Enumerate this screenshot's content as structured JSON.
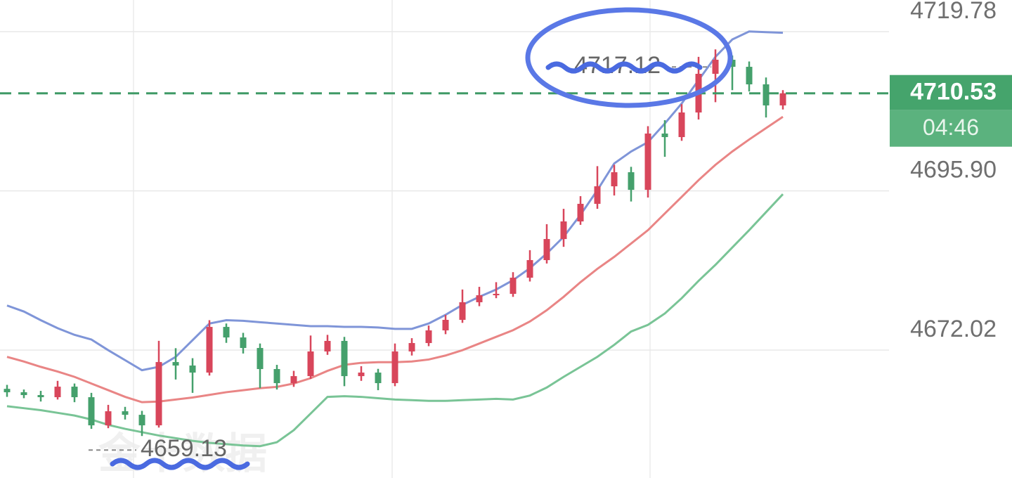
{
  "chart_data": {
    "type": "candlestick",
    "watermark": "金十数据",
    "countdown": "04:46",
    "up_color": "#d8465b",
    "down_color": "#45a06c",
    "ylim": [
      4652.83,
      4724.52
    ],
    "yticks": [
      4719.78,
      {
        "value": 4695.9,
        "label": "4695.90"
      },
      4672.02
    ],
    "grid": true,
    "open": [
      4666.2,
      4665.69,
      4665.27,
      4664.95,
      4666.53,
      4664.95,
      4660.73,
      4662.84,
      4662.31,
      4660.73,
      4670.22,
      4669.7,
      4668.64,
      4675.49,
      4673.91,
      4672.33,
      4669.17,
      4667.06,
      4668.11,
      4671.81,
      4673.39,
      4668.11,
      4668.64,
      4667.06,
      4671.81,
      4673.07,
      4674.97,
      4676.55,
      4679.19,
      4680.24,
      4680.45,
      4682.87,
      4685.51,
      4688.67,
      4691.31,
      4693.95,
      4696.58,
      4698.69,
      4696.05,
      4704.49,
      4703.96,
      4707.65,
      4713.45,
      4715.56,
      4714.5,
      4711.87,
      4708.71
    ],
    "high": [
      4666.8,
      4666.1,
      4665.9,
      4667.4,
      4667.0,
      4665.6,
      4663.8,
      4663.5,
      4662.9,
      4673.4,
      4672.3,
      4670.8,
      4676.5,
      4676.0,
      4674.6,
      4673.0,
      4669.8,
      4668.9,
      4674.2,
      4674.3,
      4674.0,
      4669.6,
      4669.2,
      4673.0,
      4673.8,
      4675.7,
      4677.3,
      4681.1,
      4681.5,
      4682.2,
      4683.7,
      4687.0,
      4690.9,
      4693.2,
      4695.1,
      4699.6,
      4699.8,
      4699.5,
      4705.6,
      4706.5,
      4708.9,
      4716.0,
      4717.12,
      4716.2,
      4715.3,
      4712.9,
      4711.0
    ],
    "low": [
      4665.0,
      4664.8,
      4664.3,
      4664.6,
      4664.2,
      4660.2,
      4660.3,
      4661.6,
      4659.13,
      4660.4,
      4667.6,
      4665.6,
      4668.2,
      4673.1,
      4671.5,
      4666.3,
      4666.1,
      4666.5,
      4667.7,
      4671.3,
      4666.6,
      4667.4,
      4666.0,
      4666.6,
      4671.2,
      4672.6,
      4674.4,
      4676.1,
      4678.6,
      4679.8,
      4680.0,
      4682.3,
      4685.0,
      4687.5,
      4690.8,
      4693.2,
      4695.2,
      4694.3,
      4694.9,
      4701.0,
      4703.4,
      4706.6,
      4709.2,
      4711.0,
      4710.8,
      4706.9,
      4708.1
    ],
    "close": [
      4665.69,
      4665.27,
      4664.95,
      4666.53,
      4664.95,
      4660.73,
      4662.84,
      4662.31,
      4660.73,
      4670.22,
      4669.7,
      4668.64,
      4675.49,
      4673.91,
      4672.33,
      4669.17,
      4667.06,
      4668.11,
      4671.81,
      4673.39,
      4668.11,
      4668.64,
      4667.06,
      4671.81,
      4673.07,
      4674.97,
      4676.55,
      4679.19,
      4680.24,
      4680.45,
      4682.87,
      4685.51,
      4688.67,
      4691.31,
      4693.95,
      4696.58,
      4698.69,
      4696.05,
      4704.49,
      4703.96,
      4707.65,
      4713.45,
      4715.56,
      4714.5,
      4711.87,
      4708.71,
      4710.53
    ],
    "bands": [
      {
        "color": "#7f95d8",
        "values": [
          4678.7,
          4677.8,
          4676.5,
          4675.3,
          4674.3,
          4673.6,
          4672.0,
          4670.5,
          4669.0,
          4669.5,
          4671.0,
          4673.5,
          4676.0,
          4676.5,
          4676.4,
          4676.2,
          4676.0,
          4675.8,
          4675.6,
          4675.6,
          4675.5,
          4675.5,
          4675.4,
          4675.2,
          4675.2,
          4676.0,
          4677.3,
          4678.8,
          4680.0,
          4681.1,
          4682.5,
          4684.3,
          4686.5,
          4689.0,
          4692.3,
          4696.0,
          4700.0,
          4701.8,
          4703.2,
          4706.0,
          4709.0,
          4712.5,
          4716.0,
          4718.6,
          4719.8,
          4719.7,
          4719.6
        ]
      },
      {
        "color": "#e98585",
        "values": [
          4671.0,
          4670.3,
          4669.5,
          4668.8,
          4668.0,
          4667.0,
          4666.0,
          4665.0,
          4664.2,
          4664.3,
          4664.6,
          4664.9,
          4665.3,
          4665.7,
          4666.0,
          4666.3,
          4666.5,
          4667.0,
          4667.8,
          4668.9,
          4669.8,
          4670.1,
          4670.2,
          4670.2,
          4670.3,
          4670.6,
          4671.2,
          4672.0,
          4673.0,
          4674.0,
          4675.0,
          4676.3,
          4678.0,
          4680.0,
          4682.2,
          4684.2,
          4686.0,
          4688.0,
          4690.0,
          4692.5,
          4695.0,
          4697.5,
          4699.8,
          4701.8,
          4703.6,
          4705.3,
          4707.0
        ]
      },
      {
        "color": "#79c496",
        "values": [
          4663.6,
          4663.3,
          4663.0,
          4662.6,
          4662.2,
          4661.6,
          4660.8,
          4660.2,
          4659.7,
          4659.2,
          4658.8,
          4658.4,
          4658.1,
          4657.9,
          4657.7,
          4657.6,
          4658.2,
          4660.0,
          4662.5,
          4665.0,
          4665.1,
          4665.0,
          4664.8,
          4664.6,
          4664.5,
          4664.4,
          4664.4,
          4664.5,
          4664.6,
          4664.7,
          4664.6,
          4665.2,
          4666.4,
          4668.0,
          4669.5,
          4671.0,
          4672.8,
          4674.8,
          4675.8,
          4677.5,
          4679.8,
          4682.4,
          4684.8,
          4687.4,
          4690.0,
          4692.7,
          4695.4
        ]
      }
    ]
  }
}
